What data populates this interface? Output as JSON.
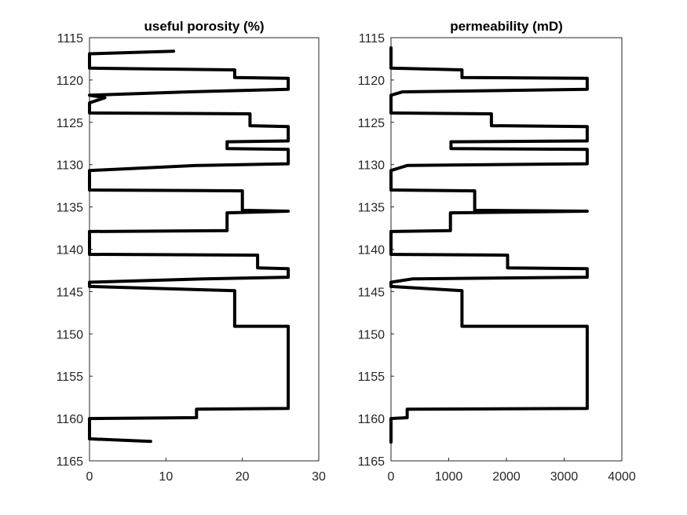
{
  "chart_data": [
    {
      "type": "line",
      "title": "useful porosity (%)",
      "xlabel": "",
      "ylabel": "",
      "xlim": [
        0,
        30
      ],
      "ylim": [
        1115,
        1165
      ],
      "y_reversed": true,
      "grid": false,
      "legend": "none",
      "x_ticks": [
        "0",
        "10",
        "20",
        "30"
      ],
      "y_ticks": [
        "1115",
        "1120",
        "1125",
        "1130",
        "1135",
        "1140",
        "1145",
        "1150",
        "1155",
        "1160",
        "1165"
      ],
      "series": [
        {
          "color": "#000000",
          "points": [
            [
              11,
              1116.6
            ],
            [
              0,
              1116.9
            ],
            [
              0,
              1118.6
            ],
            [
              19,
              1118.8
            ],
            [
              19,
              1119.7
            ],
            [
              26,
              1119.8
            ],
            [
              26,
              1121.1
            ],
            [
              13,
              1121.4
            ],
            [
              0,
              1121.8
            ],
            [
              2,
              1122.1
            ],
            [
              0,
              1122.7
            ],
            [
              0,
              1123.9
            ],
            [
              21,
              1124.0
            ],
            [
              21,
              1125.4
            ],
            [
              26,
              1125.5
            ],
            [
              26,
              1127.2
            ],
            [
              18,
              1127.3
            ],
            [
              18,
              1128.1
            ],
            [
              26,
              1128.2
            ],
            [
              26,
              1129.9
            ],
            [
              14,
              1130.1
            ],
            [
              0,
              1130.7
            ],
            [
              0,
              1133.0
            ],
            [
              20,
              1133.1
            ],
            [
              20,
              1135.4
            ],
            [
              26,
              1135.5
            ],
            [
              18,
              1135.7
            ],
            [
              18,
              1137.8
            ],
            [
              0,
              1137.9
            ],
            [
              0,
              1140.6
            ],
            [
              22,
              1140.7
            ],
            [
              22,
              1142.2
            ],
            [
              26,
              1142.3
            ],
            [
              26,
              1143.3
            ],
            [
              15,
              1143.5
            ],
            [
              0,
              1143.9
            ],
            [
              0,
              1144.4
            ],
            [
              19,
              1144.9
            ],
            [
              19,
              1149.1
            ],
            [
              26,
              1149.1
            ],
            [
              26,
              1158.8
            ],
            [
              14,
              1158.9
            ],
            [
              14,
              1159.9
            ],
            [
              0,
              1160.0
            ],
            [
              0,
              1162.4
            ],
            [
              8,
              1162.7
            ]
          ]
        }
      ]
    },
    {
      "type": "line",
      "title": "permeability (mD)",
      "xlabel": "",
      "ylabel": "",
      "xlim": [
        0,
        4000
      ],
      "ylim": [
        1115,
        1165
      ],
      "y_reversed": true,
      "grid": false,
      "legend": "none",
      "x_ticks": [
        "0",
        "1000",
        "2000",
        "3000",
        "4000"
      ],
      "y_ticks": [
        "1115",
        "1120",
        "1125",
        "1130",
        "1135",
        "1140",
        "1145",
        "1150",
        "1155",
        "1160",
        "1165"
      ],
      "series": [
        {
          "color": "#000000",
          "points": [
            [
              0,
              1116.2
            ],
            [
              0,
              1118.6
            ],
            [
              1230,
              1118.8
            ],
            [
              1230,
              1119.7
            ],
            [
              3400,
              1119.8
            ],
            [
              3400,
              1121.1
            ],
            [
              200,
              1121.4
            ],
            [
              0,
              1121.8
            ],
            [
              0,
              1123.9
            ],
            [
              1740,
              1124.0
            ],
            [
              1740,
              1125.4
            ],
            [
              3400,
              1125.5
            ],
            [
              3400,
              1127.2
            ],
            [
              1040,
              1127.3
            ],
            [
              1040,
              1128.1
            ],
            [
              3400,
              1128.2
            ],
            [
              3400,
              1129.9
            ],
            [
              280,
              1130.1
            ],
            [
              0,
              1130.7
            ],
            [
              0,
              1133.0
            ],
            [
              1450,
              1133.1
            ],
            [
              1450,
              1135.4
            ],
            [
              3400,
              1135.5
            ],
            [
              1030,
              1135.7
            ],
            [
              1030,
              1137.8
            ],
            [
              0,
              1137.9
            ],
            [
              0,
              1140.6
            ],
            [
              2020,
              1140.7
            ],
            [
              2020,
              1142.2
            ],
            [
              3400,
              1142.3
            ],
            [
              3400,
              1143.3
            ],
            [
              380,
              1143.5
            ],
            [
              0,
              1143.9
            ],
            [
              0,
              1144.4
            ],
            [
              1230,
              1144.9
            ],
            [
              1230,
              1149.1
            ],
            [
              3400,
              1149.1
            ],
            [
              3400,
              1158.8
            ],
            [
              280,
              1158.9
            ],
            [
              280,
              1159.9
            ],
            [
              0,
              1160.0
            ],
            [
              0,
              1162.8
            ]
          ]
        }
      ]
    }
  ]
}
